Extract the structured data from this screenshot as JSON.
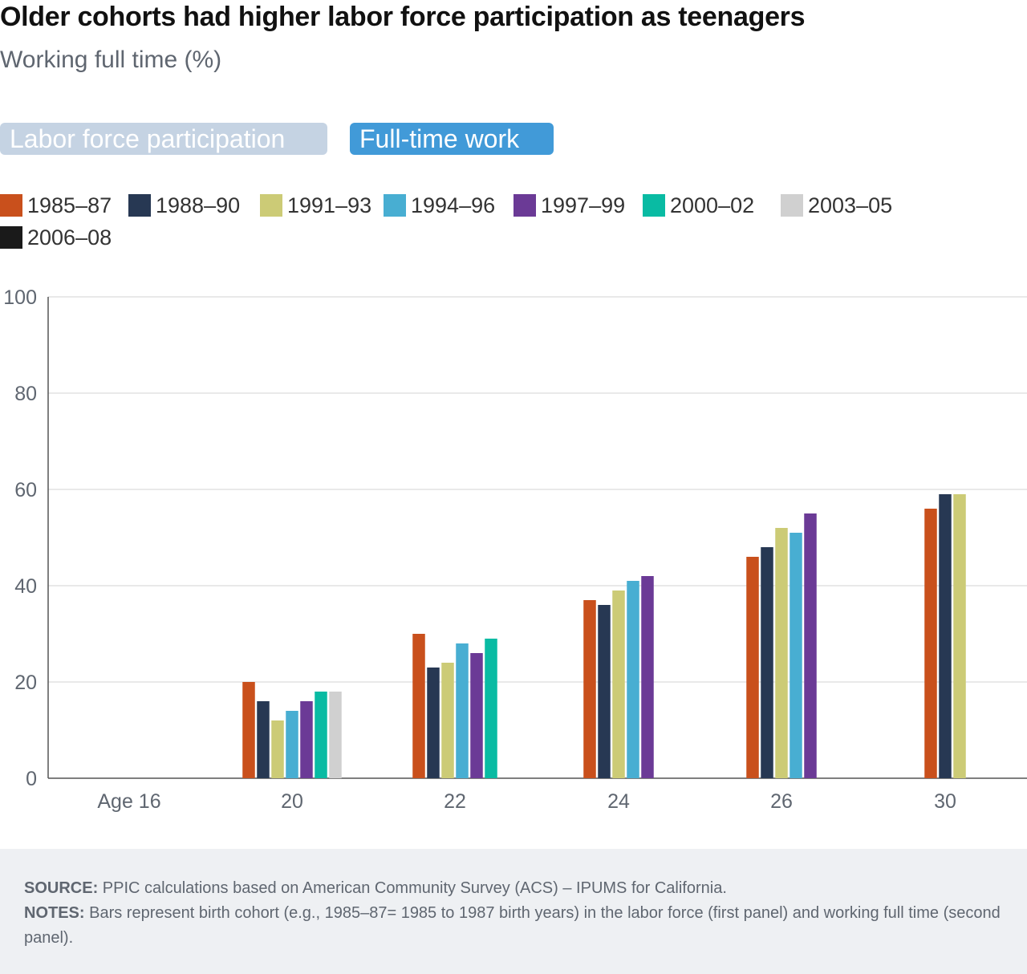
{
  "title": "Older cohorts had higher labor force participation as teenagers",
  "subtitle": "Working full time (%)",
  "tabs": [
    {
      "label": "Labor force participation",
      "active": false
    },
    {
      "label": "Full-time work",
      "active": true
    }
  ],
  "footer": {
    "source_label": "SOURCE:",
    "source_text": "PPIC calculations based on American Community Survey (ACS) – IPUMS for California.",
    "notes_label": "NOTES:",
    "notes_text": "Bars represent birth cohort (e.g., 1985–87= 1985 to 1987 birth years) in the labor force (first panel) and working full time (second panel)."
  },
  "chart_data": {
    "type": "bar",
    "categories": [
      "Age 16",
      "20",
      "22",
      "24",
      "26",
      "30"
    ],
    "ylim": [
      0,
      100
    ],
    "yticks": [
      0,
      20,
      40,
      60,
      80,
      100
    ],
    "grid": true,
    "legend_position": "top-left",
    "series": [
      {
        "name": "1985–87",
        "color": "#c9501c",
        "values": [
          null,
          20,
          30,
          37,
          46,
          56
        ]
      },
      {
        "name": "1988–90",
        "color": "#273853",
        "values": [
          null,
          16,
          23,
          36,
          48,
          59
        ]
      },
      {
        "name": "1991–93",
        "color": "#cccb76",
        "values": [
          null,
          12,
          24,
          39,
          52,
          59
        ]
      },
      {
        "name": "1994–96",
        "color": "#48aed2",
        "values": [
          null,
          14,
          28,
          41,
          51,
          null
        ]
      },
      {
        "name": "1997–99",
        "color": "#6b3a96",
        "values": [
          null,
          16,
          26,
          42,
          55,
          null
        ]
      },
      {
        "name": "2000–02",
        "color": "#09bba3",
        "values": [
          null,
          18,
          29,
          null,
          null,
          null
        ]
      },
      {
        "name": "2003–05",
        "color": "#d0d0d0",
        "values": [
          null,
          18,
          null,
          null,
          null,
          null
        ]
      },
      {
        "name": "2006–08",
        "color": "#1a1a1a",
        "values": [
          null,
          null,
          null,
          null,
          null,
          null
        ]
      }
    ]
  }
}
